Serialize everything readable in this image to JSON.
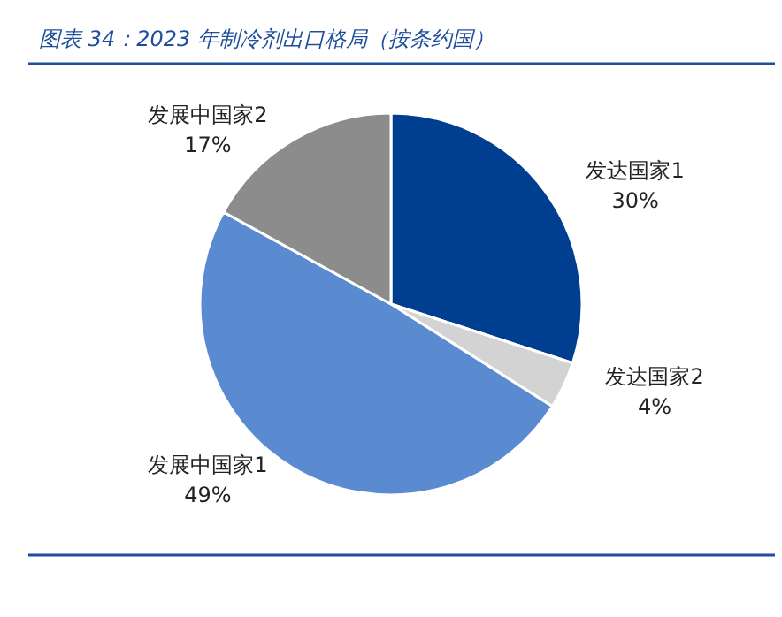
{
  "chart_data": {
    "type": "pie",
    "title": "图表 34：2023 年制冷剂出口格局（按条约国）",
    "categories": [
      "发达国家1",
      "发达国家2",
      "发展中国家1",
      "发展中国家2"
    ],
    "values": [
      30,
      4,
      49,
      17
    ],
    "colors": [
      "#003f8f",
      "#d3d3d3",
      "#5a8ad0",
      "#8c8c8c"
    ],
    "value_labels": [
      "30%",
      "4%",
      "49%",
      "17%"
    ]
  }
}
